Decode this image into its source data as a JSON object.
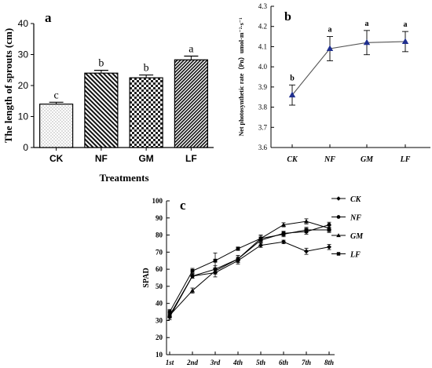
{
  "chart_data": [
    {
      "type": "bar",
      "panel_label": "a",
      "title": "",
      "xlabel": "Treatments",
      "ylabel": "The length of sprouts (cm)",
      "ylim": [
        0,
        40
      ],
      "yticks": [
        0,
        10,
        20,
        30,
        40
      ],
      "categories": [
        "CK",
        "NF",
        "GM",
        "LF"
      ],
      "values": [
        14.0,
        24.0,
        22.5,
        28.3
      ],
      "errors": [
        0.6,
        0.9,
        0.9,
        1.2
      ],
      "sig_letters": [
        "c",
        "b",
        "b",
        "a"
      ],
      "patterns": [
        "dots",
        "hatch",
        "checker",
        "hatch-dense"
      ],
      "grid": false
    },
    {
      "type": "line",
      "panel_label": "b",
      "title": "",
      "xlabel": "",
      "ylabel": "Net photosynthetic rate（Pn）umol·m⁻²·s⁻¹",
      "ylim": [
        3.6,
        4.3
      ],
      "yticks": [
        "3.6",
        "3.7",
        "3.8",
        "3.9",
        "4.0",
        "4.1",
        "4.2",
        "4.3"
      ],
      "categories": [
        "CK",
        "NF",
        "GM",
        "LF"
      ],
      "values": [
        3.86,
        4.09,
        4.12,
        4.125
      ],
      "errors": [
        0.05,
        0.06,
        0.06,
        0.05
      ],
      "sig_letters": [
        "b",
        "a",
        "a",
        "a"
      ],
      "marker": "triangle",
      "line_color": "#555555",
      "marker_color": "#1f2f8f",
      "grid": false
    },
    {
      "type": "line",
      "panel_label": "c",
      "title": "",
      "xlabel": "",
      "ylabel": "SPAD",
      "ylim": [
        10,
        100
      ],
      "yticks": [
        10,
        20,
        30,
        40,
        50,
        60,
        70,
        80,
        90,
        100
      ],
      "categories": [
        "1st",
        "2nd",
        "3rd",
        "4th",
        "5th",
        "6th",
        "7th",
        "8th"
      ],
      "series": [
        {
          "name": "CK",
          "marker": "diamond",
          "values": [
            32,
            56,
            58,
            65,
            74,
            76,
            70.5,
            73
          ],
          "errors": [
            1.5,
            1.2,
            2.5,
            2.0,
            1.2,
            1.0,
            1.8,
            1.5
          ]
        },
        {
          "name": "NF",
          "marker": "circle",
          "values": [
            33,
            56,
            60,
            66,
            77,
            81,
            82,
            86
          ],
          "errors": [
            1.5,
            1.2,
            2.0,
            2.0,
            1.5,
            1.2,
            1.5,
            1.5
          ]
        },
        {
          "name": "GM",
          "marker": "triangle",
          "values": [
            33,
            47.5,
            59,
            66,
            78,
            86,
            88,
            84
          ],
          "errors": [
            1.5,
            1.5,
            1.8,
            2.0,
            1.8,
            1.2,
            1.5,
            1.5
          ]
        },
        {
          "name": "LF",
          "marker": "square",
          "values": [
            35,
            59,
            65,
            72,
            78,
            80.5,
            83,
            83
          ],
          "errors": [
            1.5,
            1.5,
            4.5,
            1.0,
            2.0,
            1.5,
            1.5,
            1.5
          ]
        }
      ],
      "legend": "top-right",
      "grid": false
    }
  ]
}
